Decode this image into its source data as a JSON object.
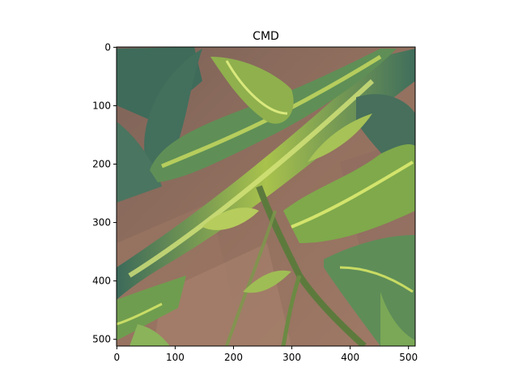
{
  "chart_data": {
    "type": "image",
    "title": "CMD",
    "xlabel": "",
    "ylabel": "",
    "image_description_name": "cassava-leaves-mosaic-disease-photo",
    "xlim": [
      -0.5,
      511.5
    ],
    "ylim": [
      511.5,
      -0.5
    ],
    "xticks": [
      0,
      100,
      200,
      300,
      400,
      500
    ],
    "yticks": [
      0,
      100,
      200,
      300,
      400,
      500
    ],
    "grid": false,
    "colors": {
      "soil": "#8a6a5c",
      "leaf_dark": "#3f6b5a",
      "leaf_yellow": "#b8c94a",
      "leaf_light": "#cfe06a",
      "stem": "#5d7a3d"
    }
  }
}
